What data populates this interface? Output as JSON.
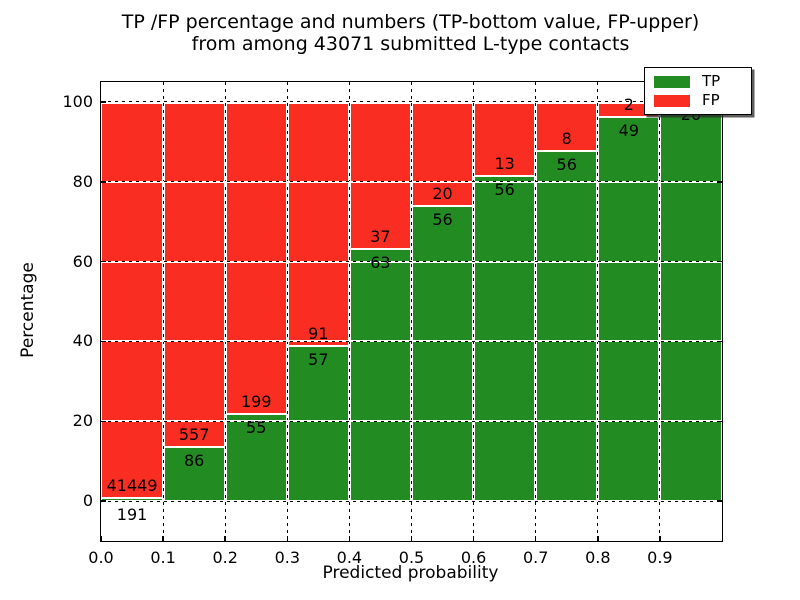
{
  "title": {
    "line1": "TP /FP percentage and numbers (TP-bottom value, FP-upper)",
    "line2": "from among 43071 submitted L-type contacts"
  },
  "axes": {
    "xlabel": "Predicted probability",
    "ylabel": "Percentage",
    "xtick_labels": [
      "0.0",
      "0.1",
      "0.2",
      "0.3",
      "0.4",
      "0.5",
      "0.6",
      "0.7",
      "0.8",
      "0.9"
    ],
    "ytick_labels": [
      "0",
      "20",
      "40",
      "60",
      "80",
      "100"
    ]
  },
  "legend": {
    "items": [
      {
        "label": "TP",
        "color": "#228b22"
      },
      {
        "label": "FP",
        "color": "#f92d22"
      }
    ]
  },
  "chart_data": {
    "type": "bar",
    "stacked": true,
    "title": "TP /FP percentage and numbers (TP-bottom value, FP-upper) from among 43071 submitted L-type contacts",
    "total_contacts": 43071,
    "xlabel": "Predicted probability",
    "ylabel": "Percentage",
    "categories": [
      "0.0",
      "0.1",
      "0.2",
      "0.3",
      "0.4",
      "0.5",
      "0.6",
      "0.7",
      "0.8",
      "0.9"
    ],
    "bin_width": 0.1,
    "series": [
      {
        "name": "TP",
        "color": "#228b22",
        "counts": [
          191,
          86,
          55,
          57,
          63,
          56,
          56,
          56,
          49,
          26
        ]
      },
      {
        "name": "FP",
        "color": "#f92d22",
        "counts": [
          41449,
          557,
          199,
          91,
          37,
          20,
          13,
          8,
          2,
          null
        ]
      }
    ],
    "yticks": [
      0,
      20,
      40,
      60,
      80,
      100
    ],
    "ylim": [
      -10,
      105
    ],
    "xlim": [
      0,
      1
    ],
    "grid": true,
    "legend_position": "upper right",
    "bar_value_labels": "FP count above segment boundary, TP count below"
  }
}
